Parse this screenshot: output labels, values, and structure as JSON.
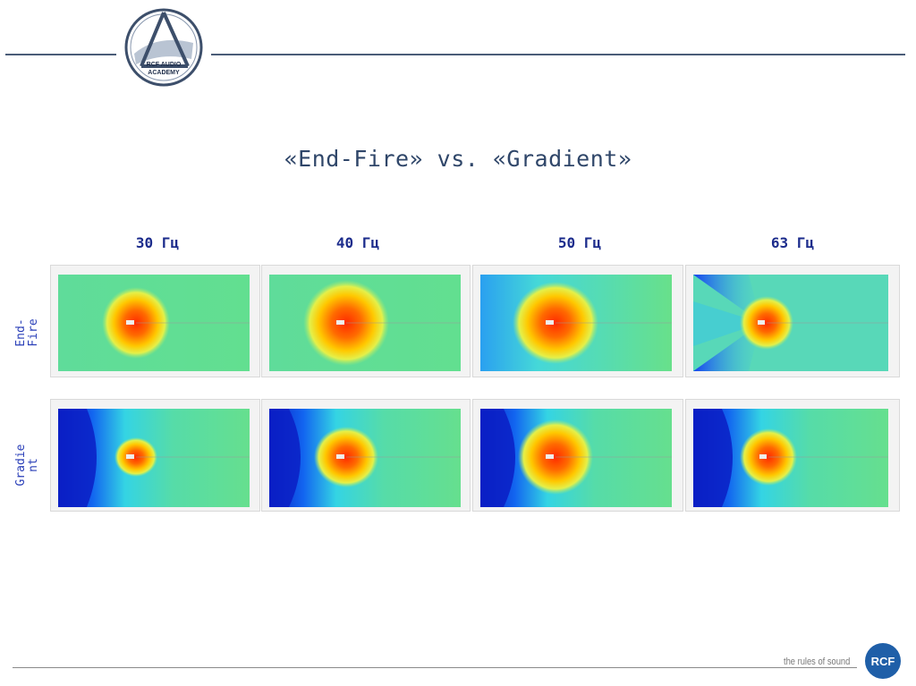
{
  "slide": {
    "title": "«End-Fire» vs. «Gradient»",
    "logo_text": [
      "RCF AUDIO",
      "ACADEMY"
    ],
    "columns": [
      "30 Гц",
      "40 Гц",
      "50 Гц",
      "63 Гц"
    ],
    "rows": [
      "End-\nFire",
      "Gradie\nnt"
    ],
    "footer_tagline": "the rules of sound",
    "brand_badge": "RCF"
  },
  "colors": {
    "line": "#4a5c78",
    "title": "#2f4669",
    "labels": "#1c2c8c",
    "badge": "#1f5fa8"
  }
}
